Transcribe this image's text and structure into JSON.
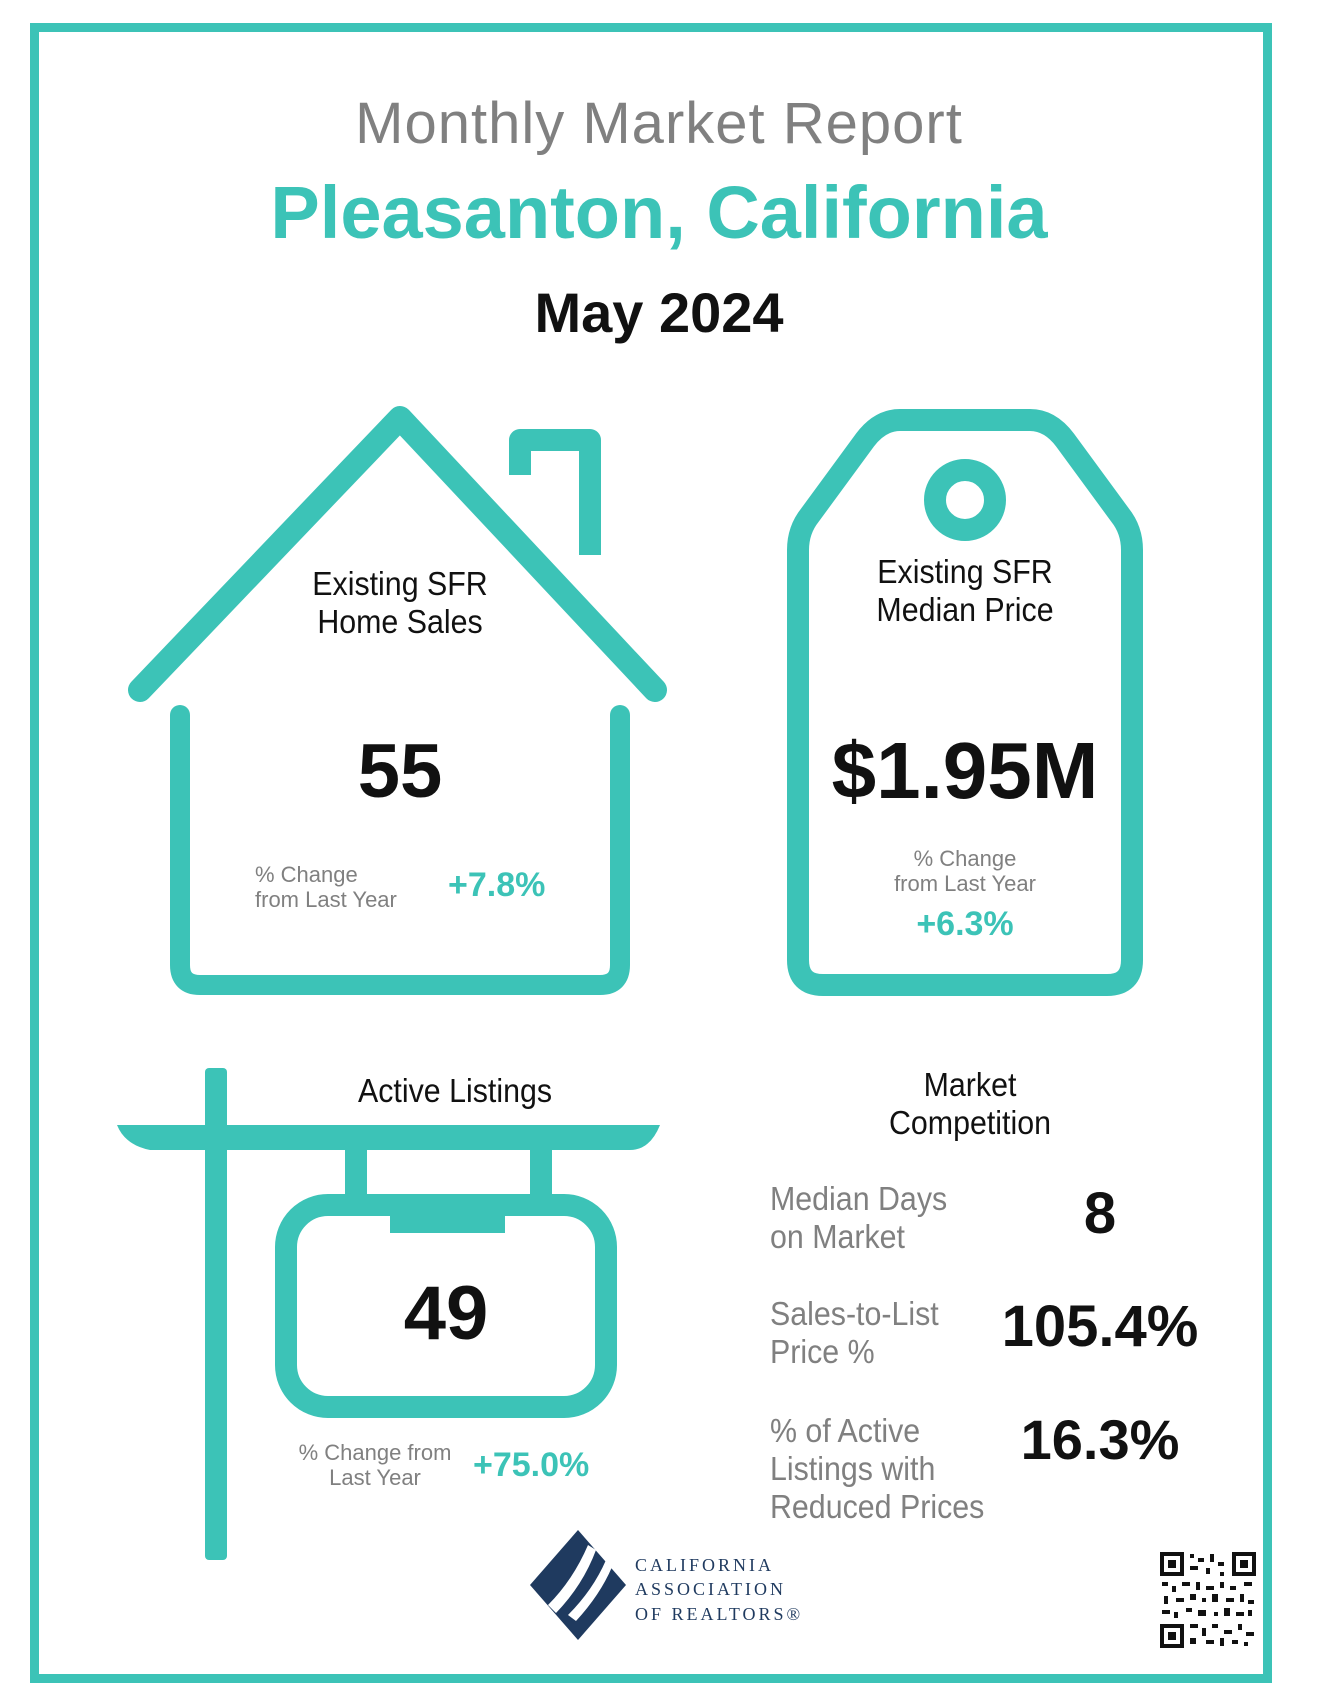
{
  "header": {
    "title": "Monthly Market Report",
    "city": "Pleasanton, California",
    "date": "May 2024"
  },
  "home_sales": {
    "label_line1": "Existing SFR",
    "label_line2": "Home Sales",
    "value": "55",
    "change_label_line1": "% Change",
    "change_label_line2": "from Last Year",
    "change_value": "+7.8%"
  },
  "median_price": {
    "label_line1": "Existing SFR",
    "label_line2": "Median Price",
    "value": "$1.95M",
    "change_label_line1": "% Change",
    "change_label_line2": "from Last Year",
    "change_value": "+6.3%"
  },
  "active_listings": {
    "label": "Active Listings",
    "value": "49",
    "change_label_line1": "% Change from",
    "change_label_line2": "Last Year",
    "change_value": "+75.0%"
  },
  "market_competition": {
    "title_line1": "Market",
    "title_line2": "Competition",
    "rows": [
      {
        "label_line1": "Median Days",
        "label_line2": "on Market",
        "label_line3": "",
        "value": "8"
      },
      {
        "label_line1": "Sales-to-List",
        "label_line2": "Price %",
        "label_line3": "",
        "value": "105.4%"
      },
      {
        "label_line1": "% of Active",
        "label_line2": "Listings with",
        "label_line3": "Reduced Prices",
        "value": "16.3%"
      }
    ]
  },
  "footer": {
    "logo_line1": "CALIFORNIA",
    "logo_line2": "ASSOCIATION",
    "logo_line3": "OF REALTORS®"
  },
  "colors": {
    "accent": "#3cc3b7",
    "text_gray": "#808080",
    "text_black": "#111111",
    "logo_navy": "#1f3a5f"
  }
}
